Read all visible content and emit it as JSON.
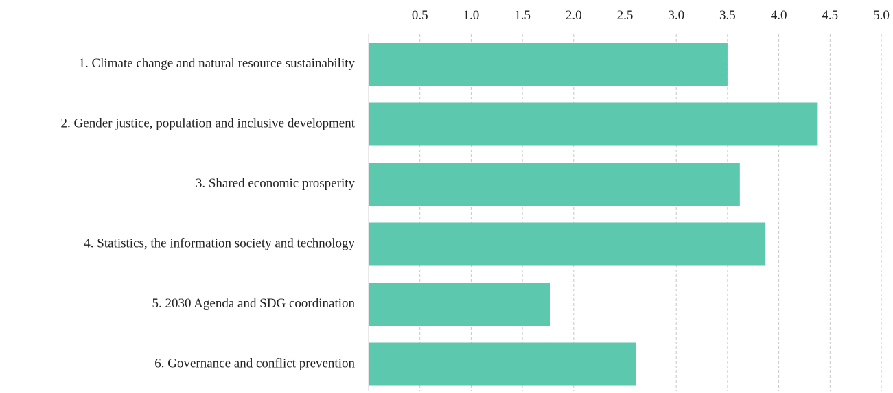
{
  "chart_data": {
    "type": "bar",
    "orientation": "horizontal",
    "categories": [
      "1. Climate change and natural resource sustainability",
      "2. Gender justice, population and inclusive development",
      "3. Shared economic prosperity",
      "4. Statistics, the information society and technology",
      "5. 2030 Agenda and SDG coordination",
      "6. Governance and conflict prevention"
    ],
    "values": [
      3.5,
      4.38,
      3.62,
      3.87,
      1.77,
      2.61
    ],
    "xlim": [
      0,
      5.0
    ],
    "xticks": [
      "0.5",
      "1.0",
      "1.5",
      "2.0",
      "2.5",
      "3.0",
      "3.5",
      "4.0",
      "4.5",
      "5.0"
    ],
    "xaxis_position": "top",
    "grid": "vertical-dashed",
    "legend": "none",
    "bar_color": "#5cc8ad",
    "grid_color": "#c8c8c8"
  }
}
